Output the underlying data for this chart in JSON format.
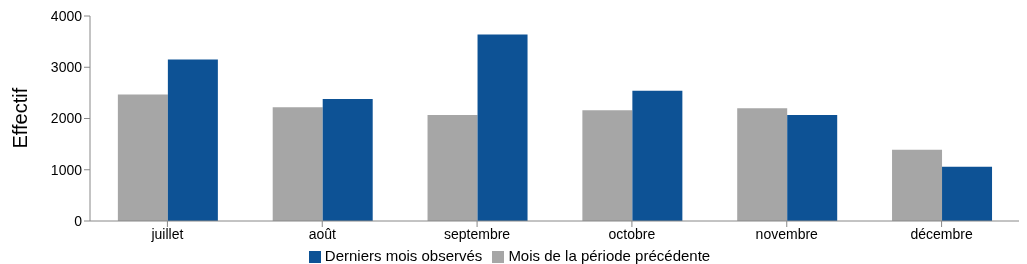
{
  "chart_data": {
    "type": "bar",
    "ylabel": "Effectif",
    "categories": [
      "juillet",
      "août",
      "septembre",
      "octobre",
      "novembre",
      "décembre"
    ],
    "series": [
      {
        "name": "Mois de la période précédente",
        "color": "#a6a6a6",
        "values": [
          2470,
          2220,
          2070,
          2160,
          2200,
          1390
        ]
      },
      {
        "name": "Derniers mois observés",
        "color": "#0d5295",
        "values": [
          3150,
          2380,
          3640,
          2540,
          2070,
          1060
        ]
      }
    ],
    "ylim": [
      0,
      4000
    ],
    "yticks": [
      0,
      1000,
      2000,
      3000,
      4000
    ],
    "grid": false,
    "legend": "bottom"
  }
}
